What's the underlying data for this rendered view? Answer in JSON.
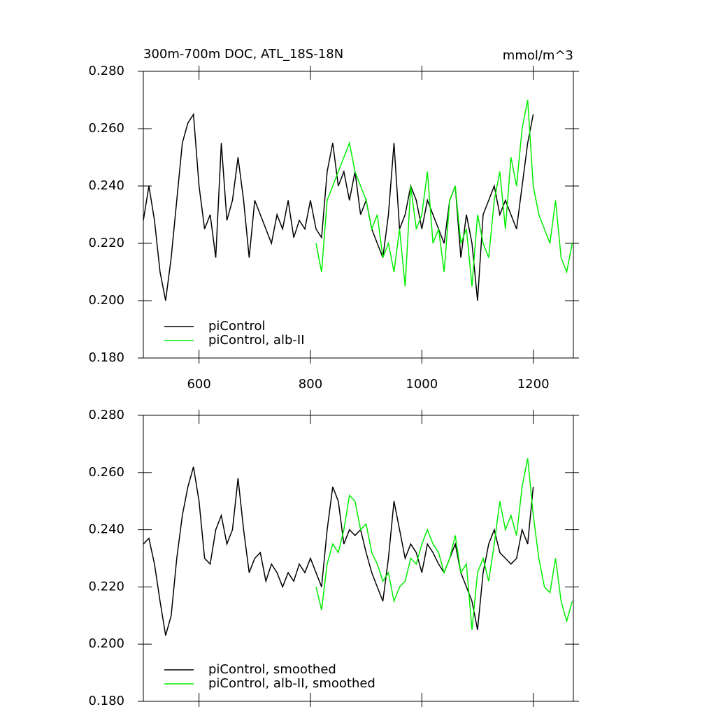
{
  "chart_data": [
    {
      "type": "line",
      "title": "300m-700m DOC, ATL_18S-18N",
      "units": "mmol/m^3",
      "xlim": [
        500,
        1272
      ],
      "ylim": [
        0.18,
        0.28
      ],
      "xticks": [
        600,
        800,
        1000,
        1200
      ],
      "yticks": [
        {
          "value": 0.18,
          "label": "0.180"
        },
        {
          "value": 0.2,
          "label": "0.200"
        },
        {
          "value": 0.22,
          "label": "0.220"
        },
        {
          "value": 0.24,
          "label": "0.240"
        },
        {
          "value": 0.26,
          "label": "0.260"
        },
        {
          "value": 0.28,
          "label": "0.280"
        }
      ],
      "legend": "lower left",
      "series": [
        {
          "name": "piControl",
          "color": "#000000",
          "x": [
            500,
            510,
            520,
            530,
            540,
            550,
            560,
            570,
            580,
            590,
            600,
            610,
            620,
            630,
            640,
            650,
            660,
            670,
            680,
            690,
            700,
            710,
            720,
            730,
            740,
            750,
            760,
            770,
            780,
            790,
            800,
            810,
            820,
            830,
            840,
            850,
            860,
            870,
            880,
            890,
            900,
            910,
            920,
            930,
            940,
            950,
            960,
            970,
            980,
            990,
            1000,
            1010,
            1020,
            1030,
            1040,
            1050,
            1060,
            1070,
            1080,
            1090,
            1100,
            1110,
            1120,
            1130,
            1140,
            1150,
            1160,
            1170,
            1180,
            1190,
            1200
          ],
          "values": [
            0.228,
            0.24,
            0.228,
            0.21,
            0.2,
            0.215,
            0.235,
            0.255,
            0.262,
            0.265,
            0.24,
            0.225,
            0.23,
            0.215,
            0.255,
            0.228,
            0.235,
            0.25,
            0.235,
            0.215,
            0.235,
            0.23,
            0.225,
            0.22,
            0.23,
            0.225,
            0.235,
            0.222,
            0.228,
            0.225,
            0.235,
            0.225,
            0.222,
            0.245,
            0.255,
            0.24,
            0.245,
            0.235,
            0.245,
            0.23,
            0.235,
            0.225,
            0.22,
            0.215,
            0.23,
            0.255,
            0.225,
            0.23,
            0.24,
            0.235,
            0.225,
            0.235,
            0.23,
            0.225,
            0.22,
            0.235,
            0.24,
            0.215,
            0.23,
            0.22,
            0.2,
            0.23,
            0.235,
            0.24,
            0.23,
            0.235,
            0.23,
            0.225,
            0.24,
            0.255,
            0.265
          ]
        },
        {
          "name": "piControl, alb-II",
          "color": "#00ee00",
          "x": [
            810,
            820,
            830,
            840,
            850,
            860,
            870,
            880,
            890,
            900,
            910,
            920,
            930,
            940,
            950,
            960,
            970,
            980,
            990,
            1000,
            1010,
            1020,
            1030,
            1040,
            1050,
            1060,
            1070,
            1080,
            1090,
            1100,
            1110,
            1120,
            1130,
            1140,
            1150,
            1160,
            1170,
            1180,
            1190,
            1200,
            1210,
            1220,
            1230,
            1240,
            1250,
            1260,
            1270
          ],
          "values": [
            0.22,
            0.21,
            0.235,
            0.24,
            0.245,
            0.25,
            0.255,
            0.245,
            0.24,
            0.235,
            0.225,
            0.23,
            0.215,
            0.22,
            0.21,
            0.225,
            0.205,
            0.24,
            0.225,
            0.23,
            0.245,
            0.22,
            0.225,
            0.21,
            0.235,
            0.24,
            0.22,
            0.225,
            0.205,
            0.23,
            0.22,
            0.215,
            0.235,
            0.245,
            0.225,
            0.25,
            0.24,
            0.26,
            0.27,
            0.24,
            0.23,
            0.225,
            0.22,
            0.235,
            0.215,
            0.21,
            0.22
          ]
        }
      ]
    },
    {
      "type": "line",
      "xlim": [
        500,
        1272
      ],
      "ylim": [
        0.18,
        0.28
      ],
      "yticks": [
        {
          "value": 0.18,
          "label": "0.180"
        },
        {
          "value": 0.2,
          "label": "0.200"
        },
        {
          "value": 0.22,
          "label": "0.220"
        },
        {
          "value": 0.24,
          "label": "0.240"
        },
        {
          "value": 0.26,
          "label": "0.260"
        },
        {
          "value": 0.28,
          "label": "0.280"
        }
      ],
      "legend": "lower left",
      "series": [
        {
          "name": "piControl, smoothed",
          "color": "#000000",
          "x": [
            500,
            510,
            520,
            530,
            540,
            550,
            560,
            570,
            580,
            590,
            600,
            610,
            620,
            630,
            640,
            650,
            660,
            670,
            680,
            690,
            700,
            710,
            720,
            730,
            740,
            750,
            760,
            770,
            780,
            790,
            800,
            810,
            820,
            830,
            840,
            850,
            860,
            870,
            880,
            890,
            900,
            910,
            920,
            930,
            940,
            950,
            960,
            970,
            980,
            990,
            1000,
            1010,
            1020,
            1030,
            1040,
            1050,
            1060,
            1070,
            1080,
            1090,
            1100,
            1110,
            1120,
            1130,
            1140,
            1150,
            1160,
            1170,
            1180,
            1190,
            1200
          ],
          "values": [
            0.235,
            0.237,
            0.228,
            0.215,
            0.203,
            0.21,
            0.23,
            0.245,
            0.255,
            0.262,
            0.25,
            0.23,
            0.228,
            0.24,
            0.245,
            0.235,
            0.24,
            0.258,
            0.24,
            0.225,
            0.23,
            0.232,
            0.222,
            0.228,
            0.225,
            0.22,
            0.225,
            0.222,
            0.228,
            0.225,
            0.23,
            0.225,
            0.22,
            0.24,
            0.255,
            0.25,
            0.235,
            0.24,
            0.238,
            0.24,
            0.232,
            0.225,
            0.22,
            0.215,
            0.23,
            0.25,
            0.24,
            0.23,
            0.235,
            0.232,
            0.225,
            0.235,
            0.232,
            0.228,
            0.225,
            0.23,
            0.235,
            0.225,
            0.22,
            0.215,
            0.205,
            0.225,
            0.235,
            0.24,
            0.232,
            0.23,
            0.228,
            0.23,
            0.24,
            0.235,
            0.255
          ]
        },
        {
          "name": "piControl, alb-II, smoothed",
          "color": "#00ee00",
          "x": [
            810,
            820,
            830,
            840,
            850,
            860,
            870,
            880,
            890,
            900,
            910,
            920,
            930,
            940,
            950,
            960,
            970,
            980,
            990,
            1000,
            1010,
            1020,
            1030,
            1040,
            1050,
            1060,
            1070,
            1080,
            1090,
            1100,
            1110,
            1120,
            1130,
            1140,
            1150,
            1160,
            1170,
            1180,
            1190,
            1200,
            1210,
            1220,
            1230,
            1240,
            1250,
            1260,
            1270
          ],
          "values": [
            0.22,
            0.212,
            0.228,
            0.235,
            0.232,
            0.24,
            0.252,
            0.25,
            0.24,
            0.242,
            0.232,
            0.228,
            0.222,
            0.225,
            0.215,
            0.22,
            0.222,
            0.23,
            0.228,
            0.235,
            0.24,
            0.235,
            0.232,
            0.225,
            0.23,
            0.238,
            0.225,
            0.228,
            0.205,
            0.225,
            0.23,
            0.222,
            0.235,
            0.25,
            0.24,
            0.245,
            0.238,
            0.255,
            0.265,
            0.245,
            0.23,
            0.22,
            0.218,
            0.23,
            0.215,
            0.208,
            0.215
          ]
        }
      ]
    }
  ]
}
